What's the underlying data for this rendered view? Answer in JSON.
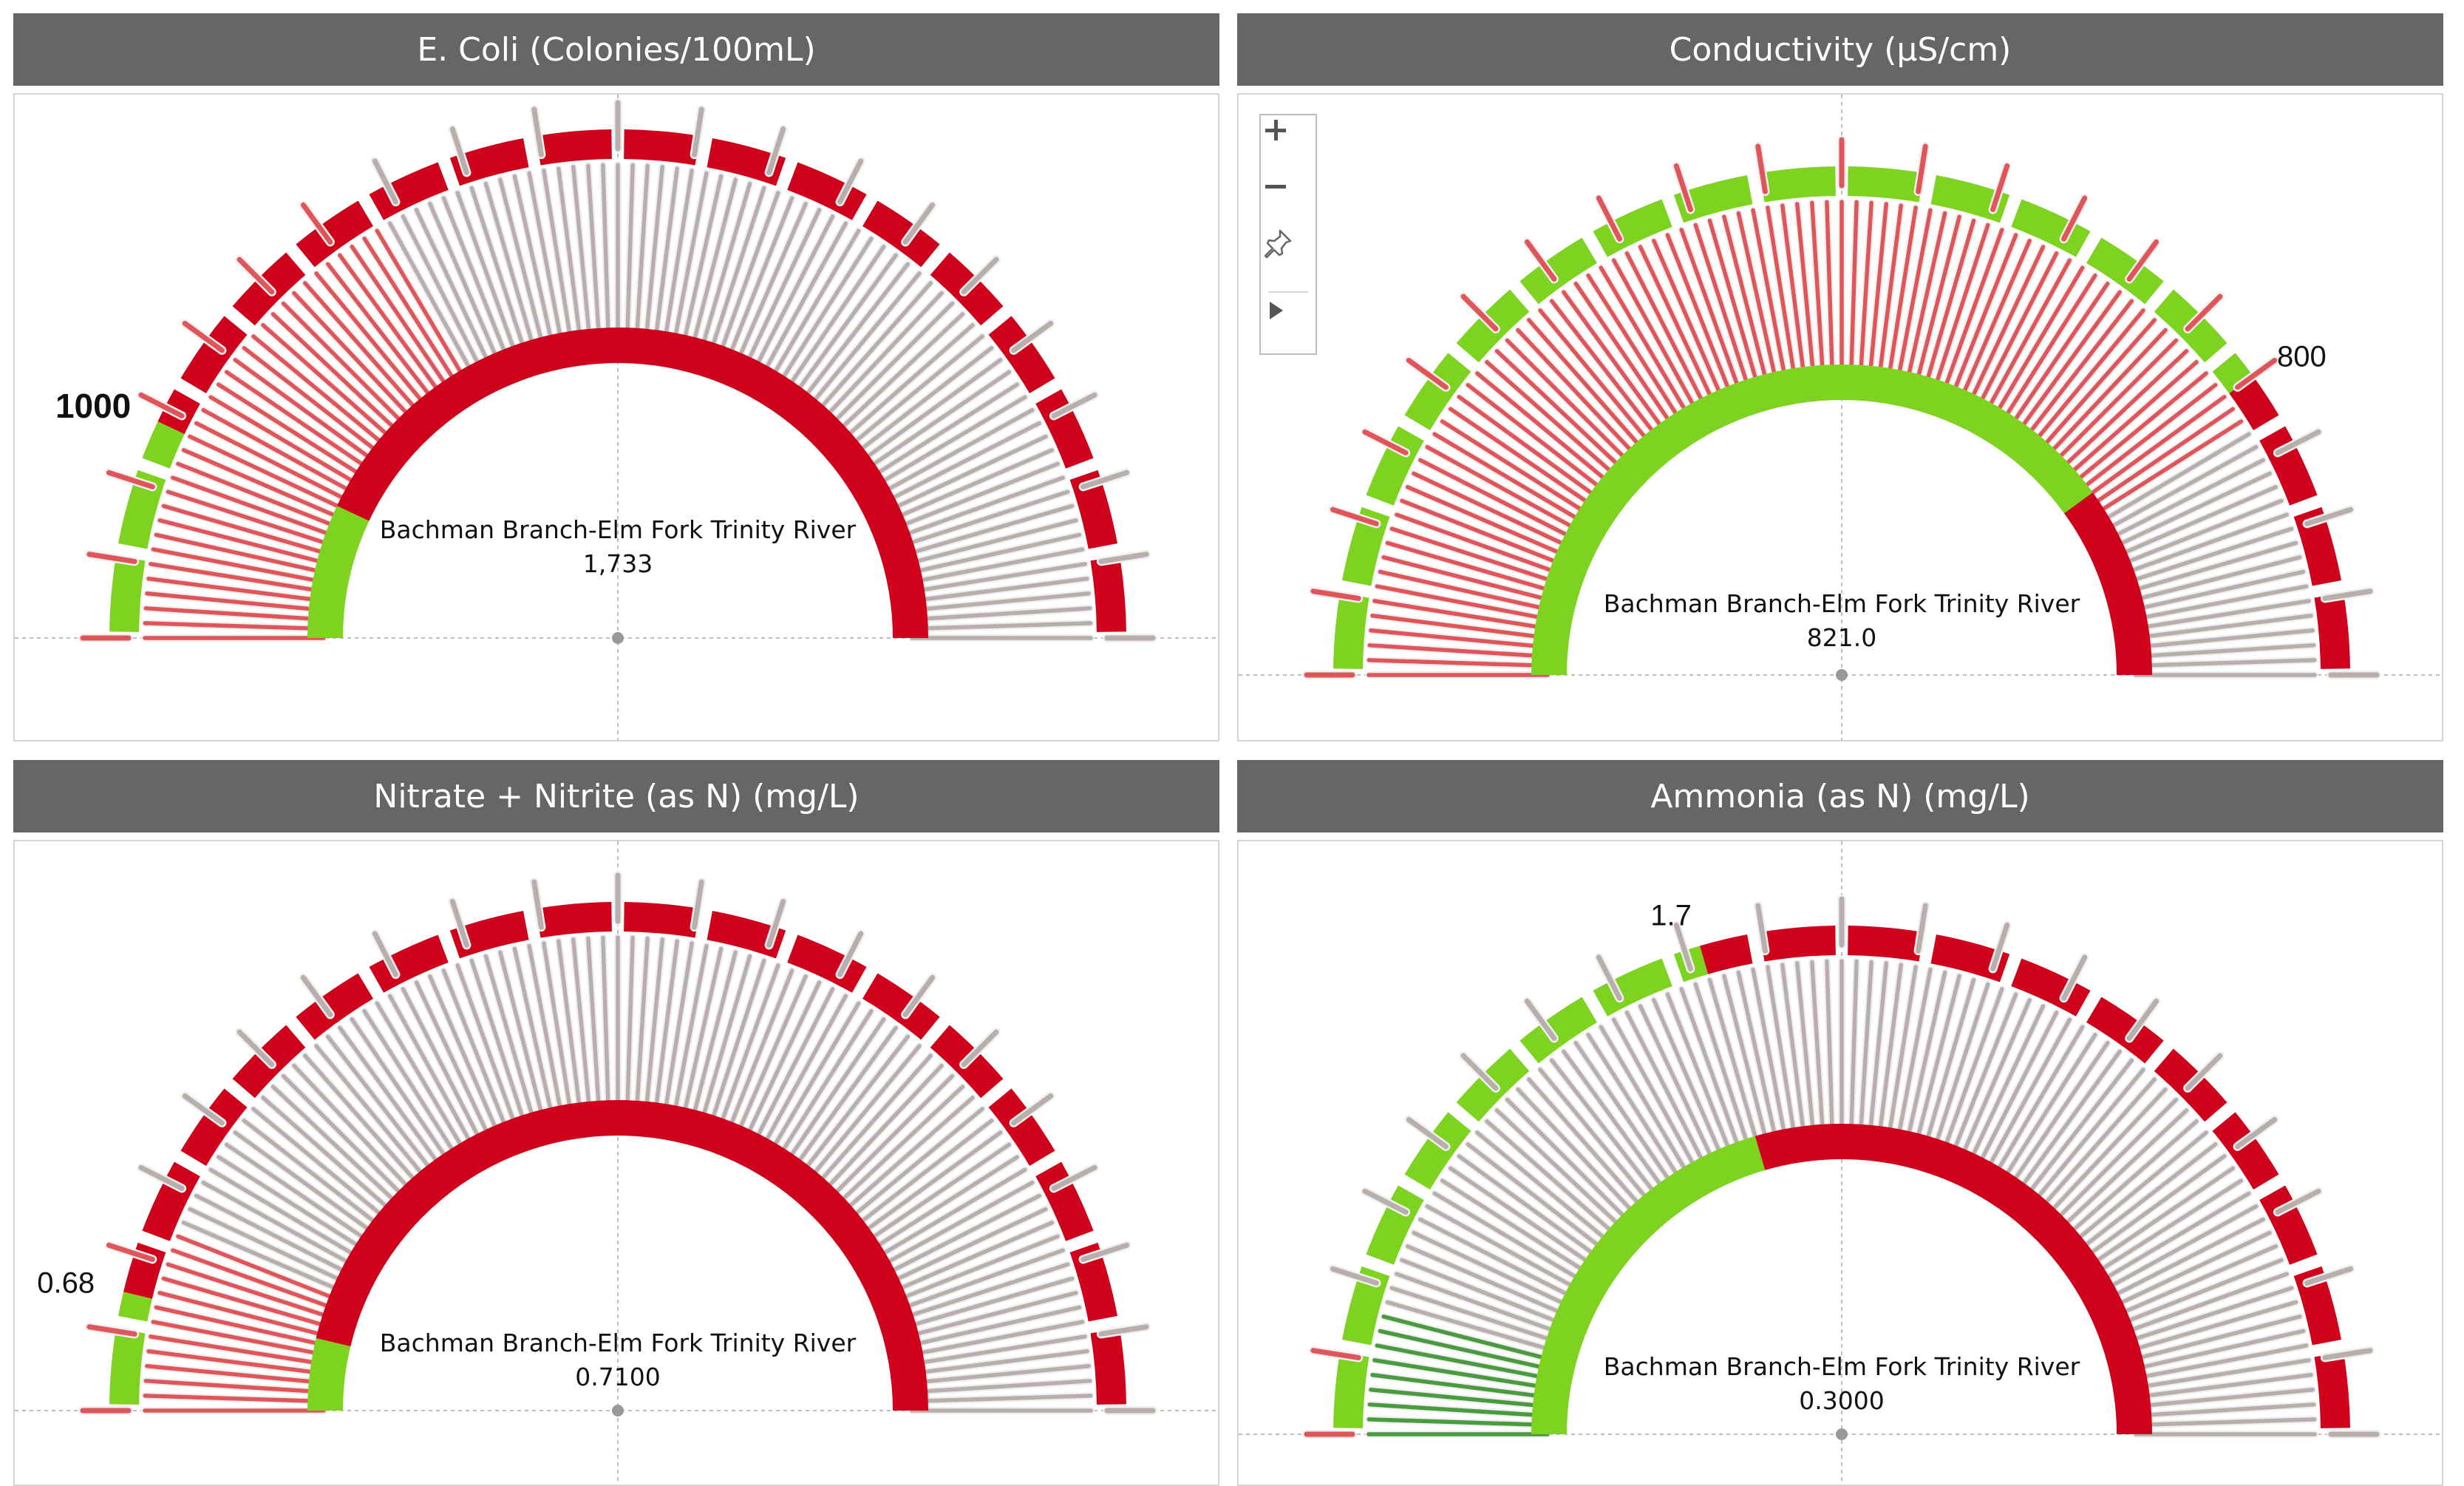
{
  "colors": {
    "header_bg": "#666666",
    "header_text": "#ffffff",
    "good": "#7ed321",
    "bad": "#d0021b",
    "bar_red": "#e0555a",
    "bar_gray": "#b8aeac",
    "bar_green": "#4a9a40",
    "tick_red": "#e0555a",
    "tick_gray": "#b8aeac"
  },
  "toolbar": {
    "zoom_in_icon": "plus-icon",
    "zoom_out_icon": "minus-icon",
    "pin_icon": "pin-icon",
    "expand_icon": "play-arrow-icon"
  },
  "panels": [
    {
      "title": "E. Coli (Colonies/100mL)",
      "site": "Bachman Branch-Elm Fork Trinity River",
      "value_label": "1,733",
      "threshold_label": "1000",
      "chart_data": {
        "type": "gauge",
        "title": "E. Coli (Colonies/100mL)",
        "threshold_label": "1000",
        "threshold_fraction": 0.14,
        "value_fraction": 0.335,
        "value": 1733,
        "good_side": "below"
      }
    },
    {
      "title": "Conductivity (µS/cm)",
      "site": "Bachman Branch-Elm Fork Trinity River",
      "value_label": "821.0",
      "threshold_label": "800",
      "chart_data": {
        "type": "gauge",
        "title": "Conductivity (µS/cm)",
        "threshold_label": "800",
        "threshold_fraction": 0.8,
        "value_fraction": 0.82,
        "value": 821.0,
        "good_side": "below"
      }
    },
    {
      "title": "Nitrate + Nitrite (as N) (mg/L)",
      "site": "Bachman Branch-Elm Fork Trinity River",
      "value_label": "0.7100",
      "threshold_label": "0.68",
      "chart_data": {
        "type": "gauge",
        "title": "Nitrate + Nitrite (as N) (mg/L)",
        "threshold_label": "0.68",
        "threshold_fraction": 0.075,
        "value_fraction": 0.125,
        "value": 0.71,
        "good_side": "below"
      }
    },
    {
      "title": "Ammonia (as N) (mg/L)",
      "site": "Bachman Branch-Elm Fork Trinity River",
      "value_label": "0.3000",
      "threshold_label": "1.7",
      "chart_data": {
        "type": "gauge",
        "title": "Ammonia (as N) (mg/L)",
        "threshold_label": "1.7",
        "threshold_fraction": 0.41,
        "value_fraction": 0.085,
        "value": 0.3,
        "good_side": "below"
      }
    }
  ]
}
